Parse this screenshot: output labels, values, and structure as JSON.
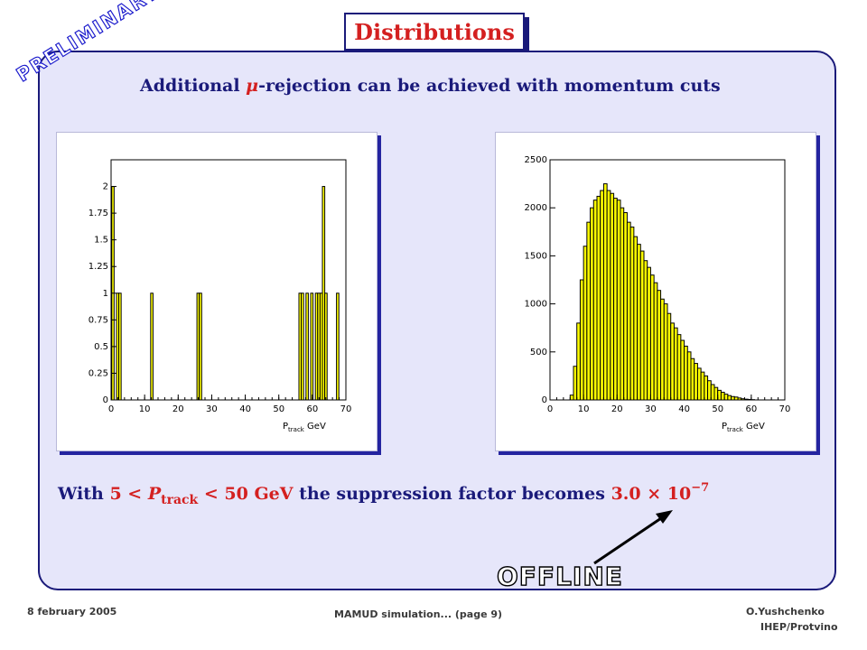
{
  "title": "Distributions",
  "watermark": "PRELIMINARY",
  "headline": {
    "prefix": "Additional ",
    "mu": "μ",
    "suffix": "-rejection can be achieved with momentum cuts"
  },
  "bottom_line": {
    "with": "With ",
    "cut_lo": "5 < ",
    "cut_var": "P",
    "cut_sub": "track",
    "cut_hi": " < 50 GeV",
    "middle": " the suppression factor becomes ",
    "factor": "3.0 × 10",
    "exponent": "−7"
  },
  "offline_label": "OFFLINE",
  "footer": {
    "date": "8 february 2005",
    "center": "MAMUD simulation...   (page 9)",
    "author": "O.Yushchenko",
    "institute": "IHEP/Protvino"
  },
  "colors": {
    "title": "#d42020",
    "navy": "#1a1a7a",
    "panel_bg": "#e6e6fa",
    "hist_fill": "#ffff00"
  },
  "chart_data": [
    {
      "type": "bar",
      "title": "",
      "xlabel": "P",
      "xlabel_sub": "track",
      "xlabel_unit": " GeV",
      "xlim": [
        0,
        70
      ],
      "ylim": [
        0,
        2.25
      ],
      "xticks": [
        0,
        10,
        20,
        30,
        40,
        50,
        60,
        70
      ],
      "yticks": [
        0,
        0.25,
        0.5,
        0.75,
        1,
        1.25,
        1.5,
        1.75,
        2
      ],
      "bin_width": 0.7,
      "x": [
        0.2,
        1.6,
        2.3,
        11.8,
        25.6,
        26.3,
        56.0,
        56.7,
        58.1,
        59.5,
        60.9,
        61.6,
        62.3,
        63.0,
        63.7,
        67.2
      ],
      "values": [
        2,
        1,
        1,
        1,
        1,
        1,
        1,
        1,
        1,
        1,
        1,
        1,
        1,
        2,
        1,
        1
      ]
    },
    {
      "type": "bar",
      "title": "",
      "xlabel": "P",
      "xlabel_sub": "track",
      "xlabel_unit": " GeV",
      "xlim": [
        0,
        70
      ],
      "ylim": [
        0,
        2500
      ],
      "xticks": [
        0,
        10,
        20,
        30,
        40,
        50,
        60,
        70
      ],
      "yticks": [
        0,
        500,
        1000,
        1500,
        2000,
        2500
      ],
      "bin_width": 1,
      "x": [
        6,
        7,
        8,
        9,
        10,
        11,
        12,
        13,
        14,
        15,
        16,
        17,
        18,
        19,
        20,
        21,
        22,
        23,
        24,
        25,
        26,
        27,
        28,
        29,
        30,
        31,
        32,
        33,
        34,
        35,
        36,
        37,
        38,
        39,
        40,
        41,
        42,
        43,
        44,
        45,
        46,
        47,
        48,
        49,
        50,
        51,
        52,
        53,
        54,
        55,
        56,
        57,
        58,
        59,
        60
      ],
      "values": [
        50,
        350,
        800,
        1250,
        1600,
        1850,
        2000,
        2080,
        2120,
        2180,
        2250,
        2180,
        2150,
        2100,
        2080,
        2000,
        1950,
        1850,
        1800,
        1700,
        1620,
        1550,
        1450,
        1380,
        1300,
        1220,
        1140,
        1050,
        1000,
        900,
        800,
        750,
        680,
        620,
        560,
        500,
        430,
        380,
        330,
        290,
        250,
        200,
        160,
        130,
        100,
        80,
        60,
        45,
        35,
        30,
        20,
        12,
        8,
        5,
        3
      ]
    }
  ]
}
